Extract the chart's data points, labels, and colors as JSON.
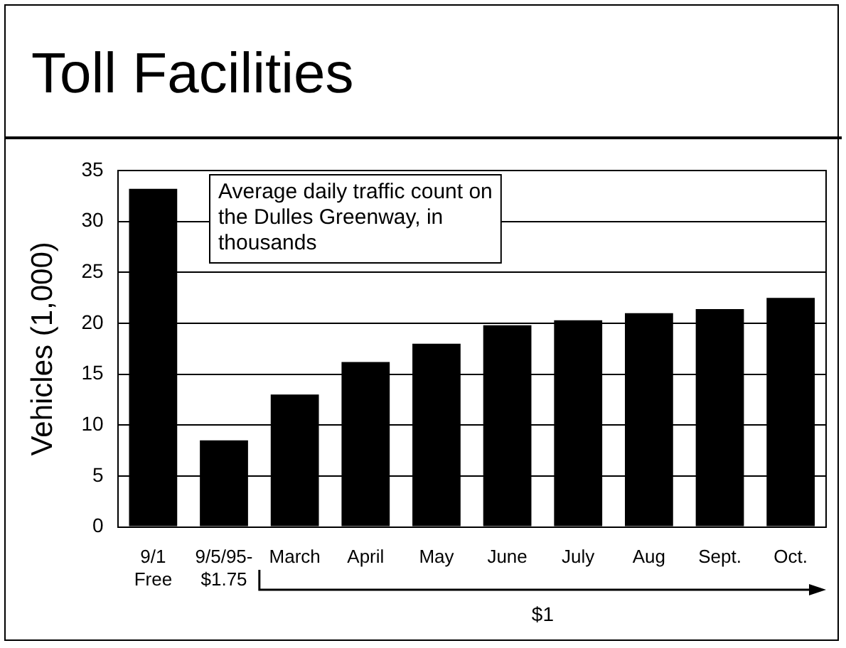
{
  "chart_data": {
    "type": "bar",
    "title": "Toll Facilities",
    "ylabel": "Vehicles (1,000)",
    "categories": [
      "9/1\nFree",
      "9/5/95-\n$1.75",
      "March",
      "April",
      "May",
      "June",
      "July",
      "Aug",
      "Sept.",
      "Oct."
    ],
    "values": [
      33.2,
      8.5,
      13,
      16.2,
      18,
      19.8,
      20.3,
      21,
      21.4,
      22.5
    ],
    "color": "#000000",
    "ylim": [
      0,
      35
    ],
    "yticks": [
      0,
      5,
      10,
      15,
      20,
      25,
      30,
      35
    ],
    "grid": "y",
    "annotations": [
      "Average daily traffic count on the Dulles Greenway, in thousands",
      "$1"
    ]
  }
}
